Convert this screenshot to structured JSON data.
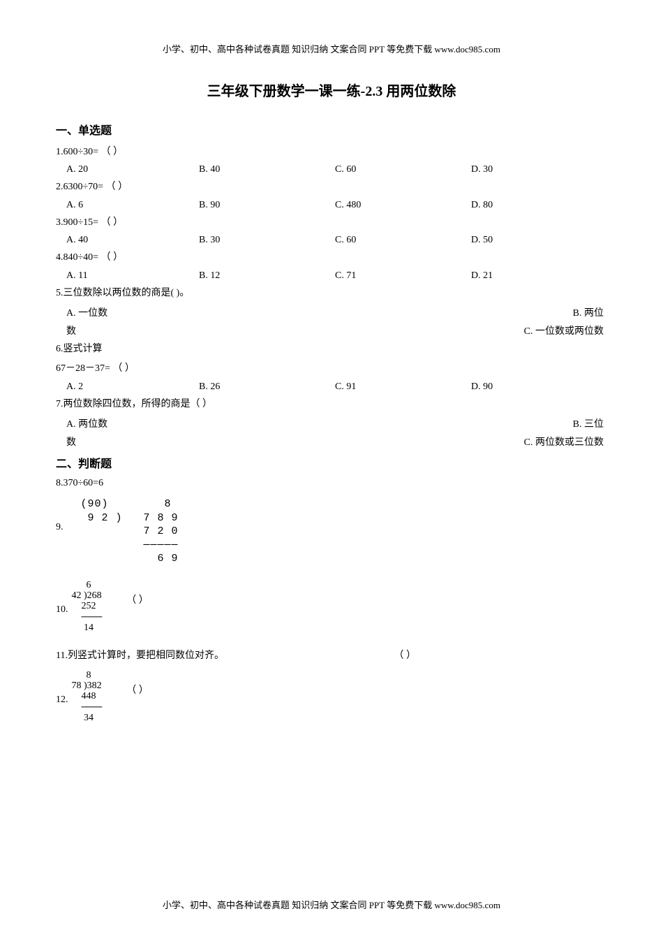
{
  "header": "小学、初中、高中各种试卷真题  知识归纳  文案合同  PPT 等免费下载    www.doc985.com",
  "title": "三年级下册数学一课一练-2.3 用两位数除",
  "section1": {
    "header": "一、单选题",
    "questions": [
      {
        "stem": "1.600÷30= （        ）",
        "optA": "A. 20",
        "optB": "B. 40",
        "optC": "C. 60",
        "optD": "D. 30"
      },
      {
        "stem": "2.6300÷70= （         ）",
        "optA": "A. 6",
        "optB": "B. 90",
        "optC": "C. 480",
        "optD": "D. 80"
      },
      {
        "stem": "3.900÷15= （        ）",
        "optA": "A. 40",
        "optB": "B. 30",
        "optC": "C. 60",
        "optD": "D. 50"
      },
      {
        "stem": "4.840÷40= （        ）",
        "optA": "A. 11",
        "optB": "B. 12",
        "optC": "C. 71",
        "optD": "D. 21"
      },
      {
        "stem": "5.三位数除以两位数的商是(   )。",
        "optA": "A. 一位数",
        "optB_right": "B. 两位",
        "optA2": "数",
        "optC_right": "C. 一位数或两位数"
      },
      {
        "stem6": "6.竖式计算",
        "stem6b": "67－28－37= （        ）",
        "optA": "A. 2",
        "optB": "B. 26",
        "optC": "C. 91",
        "optD": "D. 90"
      },
      {
        "stem": "7.两位数除四位数，所得的商是（      ）",
        "optA": "A. 两位数",
        "optB_right": "B. 三位",
        "optA2": "数",
        "optC_right": "C. 两位数或三位数"
      }
    ]
  },
  "section2": {
    "header": "二、判断题",
    "q8": "8.370÷60=6",
    "q9": {
      "num": "9.",
      "lines": "  (90)        8  \n   9 2 )   7 8 9\n           7 2 0\n           ─────\n             6 9"
    },
    "q10": {
      "num": "10.",
      "lines": "      6  \n42 )268\n    252\n    ───\n     14",
      "paren": "（    ）"
    },
    "q11": "11.列竖式计算时，要把相同数位对齐。",
    "q11paren": "（    ）",
    "q12": {
      "num": "12.",
      "lines": "      8  \n78 )382\n    448\n    ───\n     34",
      "paren": "（    ）"
    }
  },
  "footer": "小学、初中、高中各种试卷真题  知识归纳  文案合同  PPT 等免费下载    www.doc985.com"
}
